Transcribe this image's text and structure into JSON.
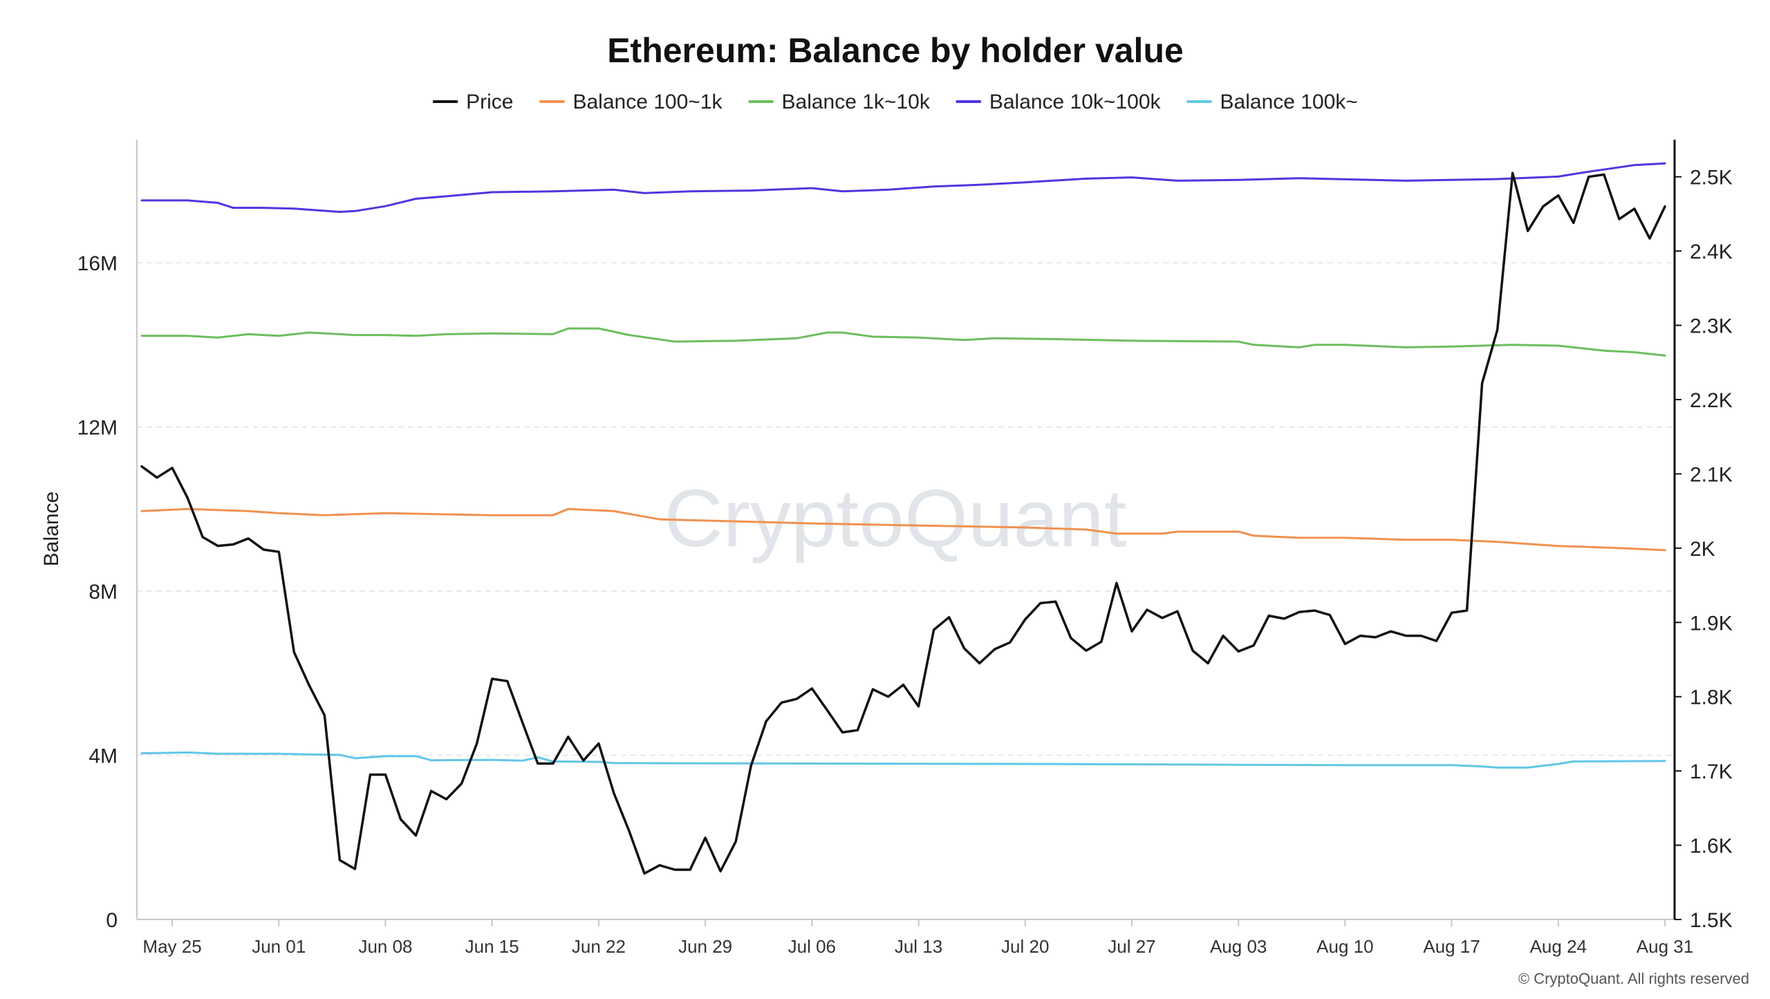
{
  "chart_data": {
    "type": "line",
    "title": "Ethereum: Balance by holder value",
    "watermark": "CryptoQuant",
    "copyright": "© CryptoQuant. All rights reserved",
    "ylabel_left": "Balance",
    "ylabel_right": "",
    "xlabel": "",
    "grid": true,
    "legend_position": "top-center",
    "x_ticks": [
      "May 25",
      "Jun 01",
      "Jun 08",
      "Jun 15",
      "Jun 22",
      "Jun 29",
      "Jul 06",
      "Jul 13",
      "Jul 20",
      "Jul 27",
      "Aug 03",
      "Aug 10",
      "Aug 17",
      "Aug 24",
      "Aug 31"
    ],
    "x_range": [
      "May 23",
      "Aug 31"
    ],
    "y_left": {
      "min": 0,
      "max": 19000000,
      "ticks": [
        0,
        4000000,
        8000000,
        12000000,
        16000000
      ],
      "tick_labels": [
        "0",
        "4M",
        "8M",
        "12M",
        "16M"
      ]
    },
    "y_right": {
      "min": 1500,
      "max": 2550,
      "ticks": [
        1500,
        1600,
        1700,
        1800,
        1900,
        2000,
        2100,
        2200,
        2300,
        2400,
        2500
      ],
      "tick_labels": [
        "1.5K",
        "1.6K",
        "1.7K",
        "1.8K",
        "1.9K",
        "2K",
        "2.1K",
        "2.2K",
        "2.3K",
        "2.4K",
        "2.5K"
      ]
    },
    "series": [
      {
        "name": "Price",
        "color": "#111111",
        "axis": "right",
        "points": [
          [
            "May 23",
            2110
          ],
          [
            "May 24",
            2095
          ],
          [
            "May 25",
            2108
          ],
          [
            "May 26",
            2068
          ],
          [
            "May 27",
            2015
          ],
          [
            "May 28",
            2003
          ],
          [
            "May 29",
            2005
          ],
          [
            "May 30",
            2013
          ],
          [
            "May 31",
            1998
          ],
          [
            "Jun 01",
            1995
          ],
          [
            "Jun 02",
            1860
          ],
          [
            "Jun 03",
            1815
          ],
          [
            "Jun 04",
            1775
          ],
          [
            "Jun 05",
            1580
          ],
          [
            "Jun 06",
            1568
          ],
          [
            "Jun 07",
            1695
          ],
          [
            "Jun 08",
            1695
          ],
          [
            "Jun 09",
            1635
          ],
          [
            "Jun 10",
            1613
          ],
          [
            "Jun 11",
            1673
          ],
          [
            "Jun 12",
            1662
          ],
          [
            "Jun 13",
            1683
          ],
          [
            "Jun 14",
            1737
          ],
          [
            "Jun 15",
            1824
          ],
          [
            "Jun 16",
            1821
          ],
          [
            "Jun 17",
            1765
          ],
          [
            "Jun 18",
            1710
          ],
          [
            "Jun 19",
            1710
          ],
          [
            "Jun 20",
            1746
          ],
          [
            "Jun 21",
            1714
          ],
          [
            "Jun 22",
            1737
          ],
          [
            "Jun 23",
            1670
          ],
          [
            "Jun 24",
            1619
          ],
          [
            "Jun 25",
            1562
          ],
          [
            "Jun 26",
            1573
          ],
          [
            "Jun 27",
            1567
          ],
          [
            "Jun 28",
            1567
          ],
          [
            "Jun 29",
            1610
          ],
          [
            "Jun 30",
            1565
          ],
          [
            "Jul 01",
            1605
          ],
          [
            "Jul 02",
            1707
          ],
          [
            "Jul 03",
            1767
          ],
          [
            "Jul 04",
            1792
          ],
          [
            "Jul 05",
            1797
          ],
          [
            "Jul 06",
            1811
          ],
          [
            "Jul 07",
            1782
          ],
          [
            "Jul 08",
            1752
          ],
          [
            "Jul 09",
            1755
          ],
          [
            "Jul 10",
            1810
          ],
          [
            "Jul 11",
            1800
          ],
          [
            "Jul 12",
            1816
          ],
          [
            "Jul 13",
            1787
          ],
          [
            "Jul 14",
            1890
          ],
          [
            "Jul 15",
            1907
          ],
          [
            "Jul 16",
            1865
          ],
          [
            "Jul 17",
            1845
          ],
          [
            "Jul 18",
            1864
          ],
          [
            "Jul 19",
            1873
          ],
          [
            "Jul 20",
            1904
          ],
          [
            "Jul 21",
            1926
          ],
          [
            "Jul 22",
            1928
          ],
          [
            "Jul 23",
            1879
          ],
          [
            "Jul 24",
            1862
          ],
          [
            "Jul 25",
            1874
          ],
          [
            "Jul 26",
            1953
          ],
          [
            "Jul 27",
            1888
          ],
          [
            "Jul 28",
            1917
          ],
          [
            "Jul 29",
            1906
          ],
          [
            "Jul 30",
            1915
          ],
          [
            "Jul 31",
            1862
          ],
          [
            "Aug 01",
            1845
          ],
          [
            "Aug 02",
            1882
          ],
          [
            "Aug 03",
            1861
          ],
          [
            "Aug 04",
            1869
          ],
          [
            "Aug 05",
            1909
          ],
          [
            "Aug 06",
            1905
          ],
          [
            "Aug 07",
            1914
          ],
          [
            "Aug 08",
            1916
          ],
          [
            "Aug 09",
            1910
          ],
          [
            "Aug 10",
            1871
          ],
          [
            "Aug 11",
            1882
          ],
          [
            "Aug 12",
            1880
          ],
          [
            "Aug 13",
            1888
          ],
          [
            "Aug 14",
            1882
          ],
          [
            "Aug 15",
            1882
          ],
          [
            "Aug 16",
            1875
          ],
          [
            "Aug 17",
            1913
          ],
          [
            "Aug 18",
            1916
          ],
          [
            "Aug 19",
            2222
          ],
          [
            "Aug 20",
            2294
          ],
          [
            "Aug 21",
            2505
          ],
          [
            "Aug 22",
            2427
          ],
          [
            "Aug 23",
            2460
          ],
          [
            "Aug 24",
            2475
          ],
          [
            "Aug 25",
            2438
          ],
          [
            "Aug 26",
            2500
          ],
          [
            "Aug 27",
            2503
          ],
          [
            "Aug 28",
            2443
          ],
          [
            "Aug 29",
            2457
          ],
          [
            "Aug 30",
            2417
          ],
          [
            "Aug 31",
            2460
          ]
        ]
      },
      {
        "name": "Balance 100~1k",
        "color": "#F0914F",
        "axis": "left",
        "points": [
          [
            "May 23",
            9950000
          ],
          [
            "May 26",
            10000000
          ],
          [
            "May 30",
            9950000
          ],
          [
            "Jun 01",
            9900000
          ],
          [
            "Jun 04",
            9850000
          ],
          [
            "Jun 08",
            9900000
          ],
          [
            "Jun 15",
            9850000
          ],
          [
            "Jun 19",
            9850000
          ],
          [
            "Jun 20",
            10000000
          ],
          [
            "Jun 23",
            9950000
          ],
          [
            "Jun 26",
            9750000
          ],
          [
            "Jul 01",
            9700000
          ],
          [
            "Jul 06",
            9650000
          ],
          [
            "Jul 13",
            9600000
          ],
          [
            "Jul 20",
            9550000
          ],
          [
            "Jul 24",
            9500000
          ],
          [
            "Jul 26",
            9400000
          ],
          [
            "Jul 29",
            9400000
          ],
          [
            "Jul 30",
            9450000
          ],
          [
            "Aug 03",
            9450000
          ],
          [
            "Aug 04",
            9350000
          ],
          [
            "Aug 07",
            9300000
          ],
          [
            "Aug 10",
            9300000
          ],
          [
            "Aug 14",
            9250000
          ],
          [
            "Aug 17",
            9250000
          ],
          [
            "Aug 20",
            9200000
          ],
          [
            "Aug 24",
            9100000
          ],
          [
            "Aug 28",
            9050000
          ],
          [
            "Aug 31",
            9000000
          ]
        ]
      },
      {
        "name": "Balance 1k~10k",
        "color": "#6CBE5E",
        "axis": "left",
        "points": [
          [
            "May 23",
            14220000
          ],
          [
            "May 26",
            14220000
          ],
          [
            "May 28",
            14180000
          ],
          [
            "May 30",
            14260000
          ],
          [
            "Jun 01",
            14220000
          ],
          [
            "Jun 03",
            14300000
          ],
          [
            "Jun 06",
            14240000
          ],
          [
            "Jun 08",
            14240000
          ],
          [
            "Jun 10",
            14220000
          ],
          [
            "Jun 12",
            14260000
          ],
          [
            "Jun 15",
            14280000
          ],
          [
            "Jun 19",
            14260000
          ],
          [
            "Jun 20",
            14400000
          ],
          [
            "Jun 22",
            14400000
          ],
          [
            "Jun 24",
            14240000
          ],
          [
            "Jun 27",
            14080000
          ],
          [
            "Jul 01",
            14100000
          ],
          [
            "Jul 05",
            14160000
          ],
          [
            "Jul 07",
            14300000
          ],
          [
            "Jul 08",
            14300000
          ],
          [
            "Jul 10",
            14200000
          ],
          [
            "Jul 13",
            14180000
          ],
          [
            "Jul 16",
            14120000
          ],
          [
            "Jul 18",
            14160000
          ],
          [
            "Jul 22",
            14140000
          ],
          [
            "Jul 27",
            14100000
          ],
          [
            "Aug 03",
            14080000
          ],
          [
            "Aug 04",
            14000000
          ],
          [
            "Aug 07",
            13940000
          ],
          [
            "Aug 08",
            14000000
          ],
          [
            "Aug 10",
            14000000
          ],
          [
            "Aug 14",
            13940000
          ],
          [
            "Aug 17",
            13960000
          ],
          [
            "Aug 21",
            14000000
          ],
          [
            "Aug 24",
            13980000
          ],
          [
            "Aug 27",
            13860000
          ],
          [
            "Aug 29",
            13820000
          ],
          [
            "Aug 31",
            13740000
          ]
        ]
      },
      {
        "name": "Balance 10k~100k",
        "color": "#5533E0",
        "axis": "left",
        "points": [
          [
            "May 23",
            17520000
          ],
          [
            "May 26",
            17520000
          ],
          [
            "May 28",
            17460000
          ],
          [
            "May 29",
            17340000
          ],
          [
            "May 31",
            17340000
          ],
          [
            "Jun 02",
            17320000
          ],
          [
            "Jun 05",
            17240000
          ],
          [
            "Jun 06",
            17260000
          ],
          [
            "Jun 08",
            17380000
          ],
          [
            "Jun 10",
            17560000
          ],
          [
            "Jun 12",
            17620000
          ],
          [
            "Jun 15",
            17720000
          ],
          [
            "Jun 19",
            17740000
          ],
          [
            "Jun 23",
            17780000
          ],
          [
            "Jun 25",
            17700000
          ],
          [
            "Jun 28",
            17740000
          ],
          [
            "Jul 02",
            17760000
          ],
          [
            "Jul 06",
            17820000
          ],
          [
            "Jul 08",
            17740000
          ],
          [
            "Jul 11",
            17780000
          ],
          [
            "Jul 14",
            17860000
          ],
          [
            "Jul 17",
            17900000
          ],
          [
            "Jul 20",
            17960000
          ],
          [
            "Jul 24",
            18050000
          ],
          [
            "Jul 27",
            18080000
          ],
          [
            "Jul 30",
            18000000
          ],
          [
            "Aug 03",
            18020000
          ],
          [
            "Aug 07",
            18060000
          ],
          [
            "Aug 14",
            18000000
          ],
          [
            "Aug 20",
            18040000
          ],
          [
            "Aug 24",
            18100000
          ],
          [
            "Aug 26",
            18220000
          ],
          [
            "Aug 29",
            18380000
          ],
          [
            "Aug 31",
            18420000
          ]
        ]
      },
      {
        "name": "Balance 100k~",
        "color": "#62C6E7",
        "axis": "left",
        "points": [
          [
            "May 23",
            4050000
          ],
          [
            "May 26",
            4070000
          ],
          [
            "May 28",
            4040000
          ],
          [
            "Jun 01",
            4040000
          ],
          [
            "Jun 03",
            4020000
          ],
          [
            "Jun 05",
            4010000
          ],
          [
            "Jun 06",
            3930000
          ],
          [
            "Jun 08",
            3980000
          ],
          [
            "Jun 10",
            3980000
          ],
          [
            "Jun 11",
            3880000
          ],
          [
            "Jun 15",
            3890000
          ],
          [
            "Jun 17",
            3870000
          ],
          [
            "Jun 18",
            3950000
          ],
          [
            "Jun 19",
            3850000
          ],
          [
            "Jun 22",
            3840000
          ],
          [
            "Jun 23",
            3810000
          ],
          [
            "Jul 06",
            3800000
          ],
          [
            "Jul 20",
            3790000
          ],
          [
            "Jul 27",
            3780000
          ],
          [
            "Aug 03",
            3770000
          ],
          [
            "Aug 10",
            3760000
          ],
          [
            "Aug 17",
            3760000
          ],
          [
            "Aug 19",
            3730000
          ],
          [
            "Aug 20",
            3700000
          ],
          [
            "Aug 22",
            3700000
          ],
          [
            "Aug 24",
            3790000
          ],
          [
            "Aug 25",
            3850000
          ],
          [
            "Aug 31",
            3860000
          ]
        ]
      }
    ]
  }
}
